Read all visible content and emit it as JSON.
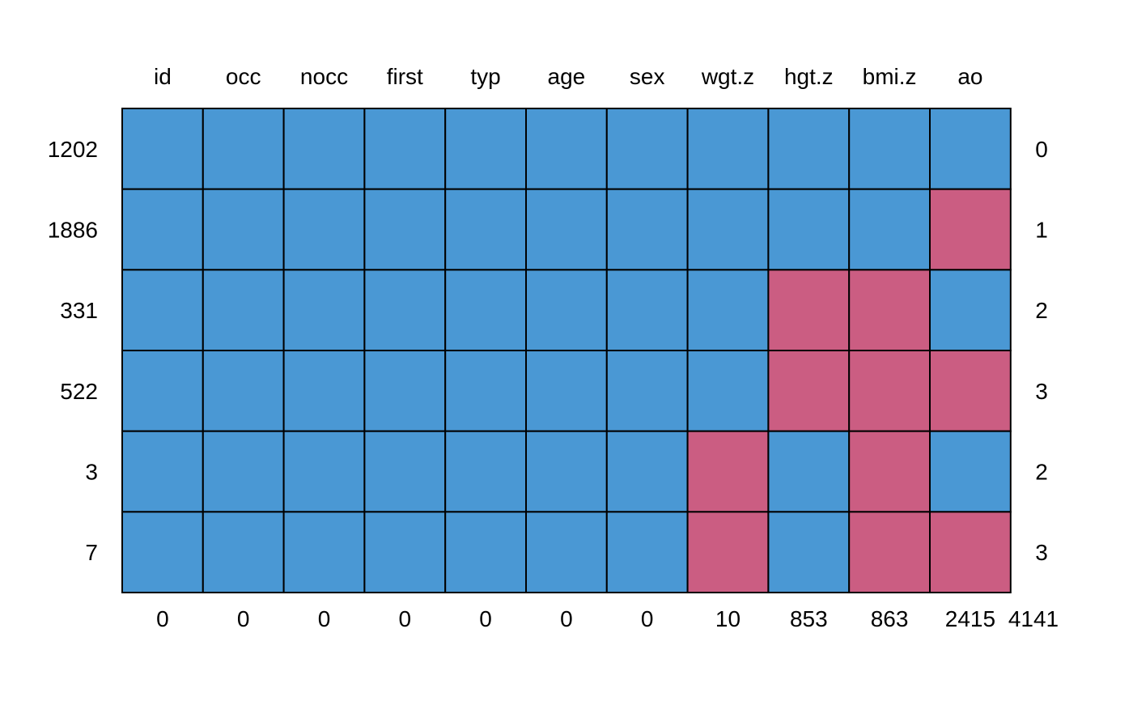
{
  "chart_data": {
    "type": "heatmap",
    "title": "",
    "variables": [
      "id",
      "occ",
      "nocc",
      "first",
      "typ",
      "age",
      "sex",
      "wgt.z",
      "hgt.z",
      "bmi.z",
      "ao"
    ],
    "pattern_counts": [
      "1202",
      "1886",
      "331",
      "522",
      "3",
      "7"
    ],
    "missing_per_pattern": [
      "0",
      "1",
      "2",
      "3",
      "2",
      "3"
    ],
    "missing_per_variable": [
      "0",
      "0",
      "0",
      "0",
      "0",
      "0",
      "0",
      "10",
      "853",
      "863",
      "2415"
    ],
    "total_missing": "4141",
    "matrix": [
      [
        1,
        1,
        1,
        1,
        1,
        1,
        1,
        1,
        1,
        1,
        1
      ],
      [
        1,
        1,
        1,
        1,
        1,
        1,
        1,
        1,
        1,
        1,
        0
      ],
      [
        1,
        1,
        1,
        1,
        1,
        1,
        1,
        1,
        0,
        0,
        1
      ],
      [
        1,
        1,
        1,
        1,
        1,
        1,
        1,
        1,
        0,
        0,
        0
      ],
      [
        1,
        1,
        1,
        1,
        1,
        1,
        1,
        0,
        1,
        0,
        1
      ],
      [
        1,
        1,
        1,
        1,
        1,
        1,
        1,
        0,
        1,
        0,
        0
      ]
    ],
    "legend": "none",
    "colors": {
      "observed": "#4A98D4",
      "missing": "#CB5D82",
      "border": "#000000"
    }
  }
}
